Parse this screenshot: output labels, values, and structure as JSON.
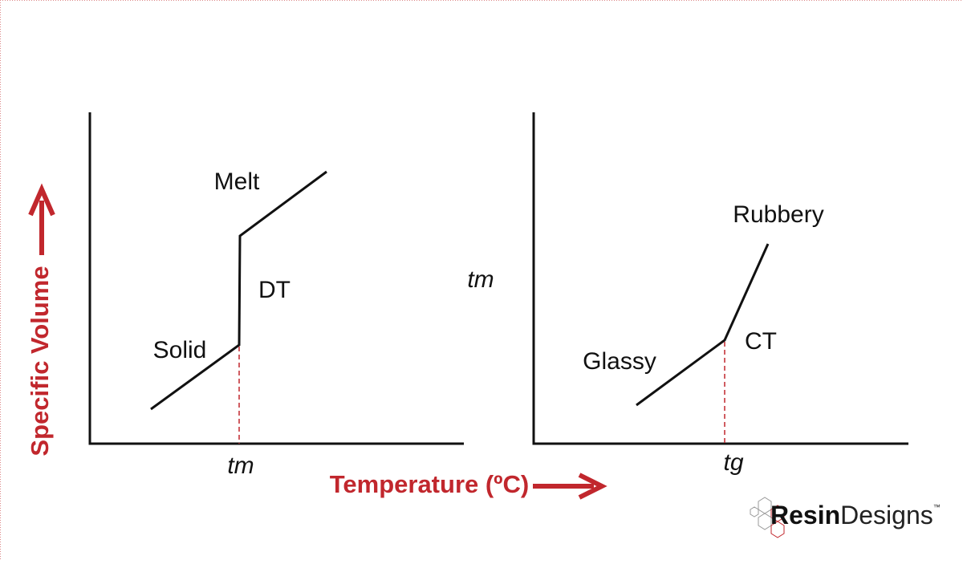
{
  "y_axis_label": "Specific Volume",
  "x_axis_label": "Temperature (ºC)",
  "left_panel": {
    "melt": "Melt",
    "transition": "DT",
    "solid": "Solid",
    "temperature": "tm"
  },
  "right_panel": {
    "rubbery": "Rubbery",
    "transition": "CT",
    "glassy": "Glassy",
    "temperature": "tg"
  },
  "floating_label": "tm",
  "logo": {
    "bold": "Resin",
    "regular": "Designs",
    "mark": "™"
  }
}
